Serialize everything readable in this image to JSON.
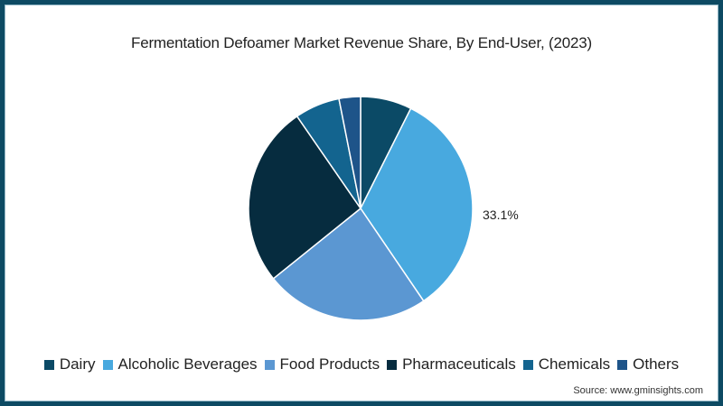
{
  "chart_data": {
    "type": "pie",
    "title": "Fermentation Defoamer Market Revenue Share, By End-User, (2023)",
    "categories": [
      "Dairy",
      "Alcoholic Beverages",
      "Food Products",
      "Pharmaceuticals",
      "Chemicals",
      "Others"
    ],
    "values": [
      7.4,
      33.1,
      23.7,
      26.2,
      6.5,
      3.1
    ],
    "colors": [
      "#0b4a66",
      "#48a9df",
      "#5b97d2",
      "#062c3f",
      "#13648f",
      "#1e5489"
    ],
    "annotations": [
      {
        "category": "Alcoholic Beverages",
        "text": "33.1%"
      }
    ],
    "start_angle": "12 o'clock, clockwise",
    "legend_position": "bottom",
    "source": "Source: www.gminsights.com"
  },
  "title": "Fermentation Defoamer Market Revenue Share, By End-User, (2023)",
  "slice_label": "33.1%",
  "legend": [
    {
      "label": "Dairy",
      "color": "#0b4a66"
    },
    {
      "label": "Alcoholic Beverages",
      "color": "#48a9df"
    },
    {
      "label": "Food Products",
      "color": "#5b97d2"
    },
    {
      "label": "Pharmaceuticals",
      "color": "#062c3f"
    },
    {
      "label": "Chemicals",
      "color": "#13648f"
    },
    {
      "label": "Others",
      "color": "#1e5489"
    }
  ],
  "source": "Source: www.gminsights.com"
}
